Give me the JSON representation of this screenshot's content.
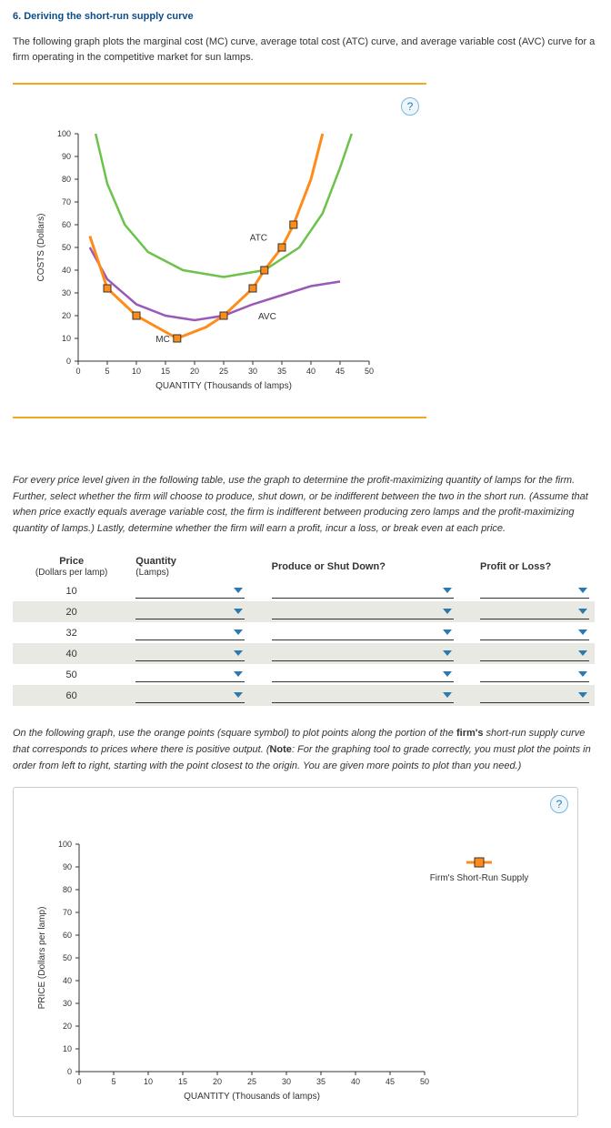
{
  "title": "6. Deriving the short-run supply curve",
  "intro": "The following graph plots the marginal cost (MC) curve, average total cost (ATC) curve, and average variable cost (AVC) curve for a firm operating in the competitive market for sun lamps.",
  "chart1": {
    "y_label": "COSTS (Dollars)",
    "x_label": "QUANTITY (Thousands of lamps)",
    "x_min": 0,
    "x_max": 50,
    "x_step": 5,
    "y_min": 0,
    "y_max": 100,
    "y_step": 10,
    "curves": {
      "mc": "MC",
      "atc": "ATC",
      "avc": "AVC"
    },
    "markers": [
      {
        "x": 5,
        "y": 32
      },
      {
        "x": 10,
        "y": 20
      },
      {
        "x": 17,
        "y": 10
      },
      {
        "x": 25,
        "y": 20
      },
      {
        "x": 30,
        "y": 32
      },
      {
        "x": 32,
        "y": 40
      },
      {
        "x": 35,
        "y": 50
      },
      {
        "x": 37,
        "y": 60
      }
    ]
  },
  "instructions": "For every price level given in the following table, use the graph to determine the profit-maximizing quantity of lamps for the firm. Further, select whether the firm will choose to produce, shut down, or be indifferent between the two in the short run. (Assume that when price exactly equals average variable cost, the firm is indifferent between producing zero lamps and the profit-maximizing quantity of lamps.) Lastly, determine whether the firm will earn a profit, incur a loss, or break even at each price.",
  "table": {
    "headers": {
      "price": "Price",
      "price_sub": "(Dollars per lamp)",
      "qty": "Quantity",
      "qty_sub": "(Lamps)",
      "produce": "Produce or Shut Down?",
      "profit": "Profit or Loss?"
    },
    "prices": [
      10,
      20,
      32,
      40,
      50,
      60
    ]
  },
  "note_parts": {
    "p1": "On the following graph, use the orange points (square symbol) to plot points along the portion of the ",
    "bold1": "firm's",
    "p2": " short-run supply curve that corresponds to prices where there is positive output. (",
    "bold2": "Note",
    "p3": ": For the graphing tool to grade correctly, you must plot the points in order from left to right, starting with the point closest to the origin. You are given more points to plot than you need.)"
  },
  "chart2": {
    "y_label": "PRICE (Dollars per lamp)",
    "x_label": "QUANTITY (Thousands of lamps)",
    "x_min": 0,
    "x_max": 50,
    "x_step": 5,
    "y_min": 0,
    "y_max": 100,
    "y_step": 10,
    "legend": "Firm's Short-Run Supply"
  }
}
